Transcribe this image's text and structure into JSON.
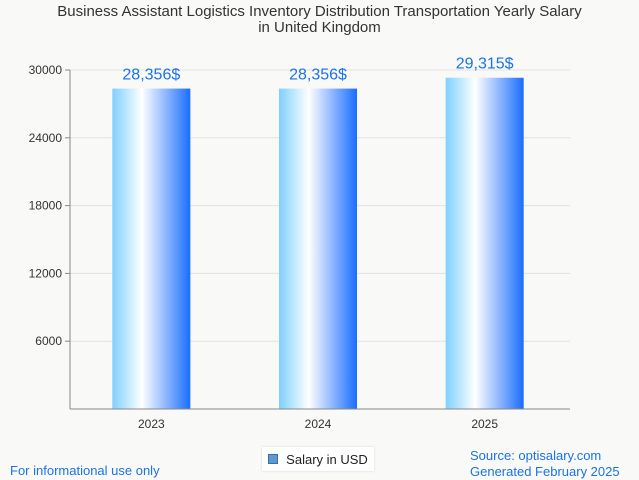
{
  "chart_data": {
    "type": "bar",
    "title_lines": [
      "Business Assistant Logistics Inventory Distribution Transportation Yearly Salary",
      "in United Kingdom"
    ],
    "categories": [
      "2023",
      "2024",
      "2025"
    ],
    "series": [
      {
        "name": "Salary in USD",
        "values": [
          28356,
          28356,
          29315
        ]
      }
    ],
    "data_labels": [
      "28,356$",
      "28,356$",
      "29,315$"
    ],
    "ylim": [
      0,
      30000
    ],
    "yticks": [
      6000,
      12000,
      18000,
      24000,
      30000
    ],
    "grid": true,
    "legend_position": "bottom-center",
    "colors": {
      "bar_light": "#ffffff",
      "bar_mid": "#7fd0ff",
      "bar_dark": "#1a6dff",
      "label": "#1a73e8"
    }
  },
  "footer": {
    "left": "For informational use only",
    "source": "Source: optisalary.com",
    "generated": "Generated February 2025"
  }
}
